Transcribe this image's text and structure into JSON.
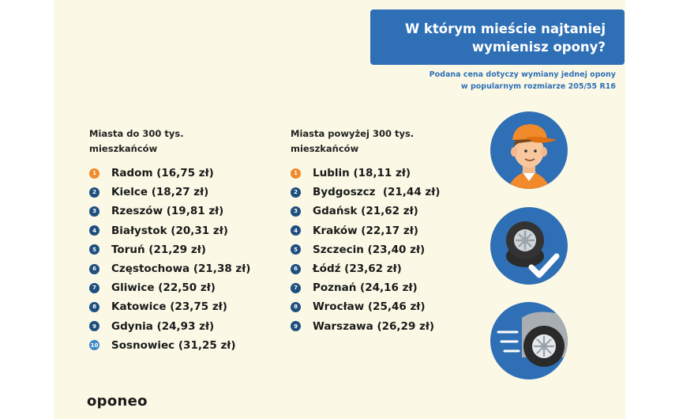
{
  "header": {
    "title_line1": "W którym mieście najtaniej",
    "title_line2": "wymienisz opony?",
    "subtitle_line1": "Podana cena dotyczy wymiany jednej opony",
    "subtitle_line2": "w popularnym rozmiarze 205/55 R16"
  },
  "left_column": {
    "heading_line1": "Miasta do 300 tys.",
    "heading_line2": "mieszkańców",
    "items": [
      {
        "rank": "1",
        "text": "Radom (16,75 zł)"
      },
      {
        "rank": "2",
        "text": "Kielce (18,27 zł)"
      },
      {
        "rank": "3",
        "text": "Rzeszów (19,81 zł)"
      },
      {
        "rank": "4",
        "text": "Białystok (20,31 zł)"
      },
      {
        "rank": "5",
        "text": "Toruń (21,29 zł)"
      },
      {
        "rank": "6",
        "text": "Częstochowa (21,38 zł)"
      },
      {
        "rank": "7",
        "text": "Gliwice (22,50 zł)"
      },
      {
        "rank": "8",
        "text": "Katowice (23,75 zł)"
      },
      {
        "rank": "9",
        "text": "Gdynia (24,93 zł)"
      },
      {
        "rank": "10",
        "text": "Sosnowiec (31,25 zł)"
      }
    ]
  },
  "right_column": {
    "heading_line1": "Miasta powyżej 300 tys.",
    "heading_line2": "mieszkańców",
    "items": [
      {
        "rank": "1",
        "text": "Lublin (18,11 zł)"
      },
      {
        "rank": "2",
        "text": "Bydgoszcz  (21,44 zł)"
      },
      {
        "rank": "3",
        "text": "Gdańsk (21,62 zł)"
      },
      {
        "rank": "4",
        "text": "Kraków (22,17 zł)"
      },
      {
        "rank": "5",
        "text": "Szczecin (23,40 zł)"
      },
      {
        "rank": "6",
        "text": "Łódź (23,62 zł)"
      },
      {
        "rank": "7",
        "text": "Poznań (24,16 zł)"
      },
      {
        "rank": "8",
        "text": "Wrocław (25,46 zł)"
      },
      {
        "rank": "9",
        "text": "Warszawa (26,29 zł)"
      }
    ]
  },
  "brand": {
    "logo_text": "oponeo"
  },
  "icons": [
    "mechanic-icon",
    "tire-check-icon",
    "car-wheel-icon"
  ],
  "colors": {
    "accent_blue": "#2f6fb5",
    "rank_dark": "#1f4f7f",
    "rank_orange": "#f08a2b",
    "background": "#fbf9e6"
  }
}
